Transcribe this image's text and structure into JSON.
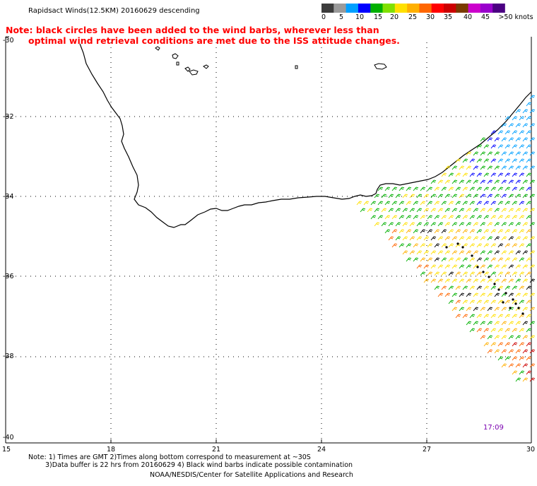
{
  "header": {
    "title": "Rapidsact Winds(12.5KM) 20160629 descending"
  },
  "note": {
    "line1": "Note: black circles have been added to the wind barbs, wherever less than",
    "line2": "optimal wind retrieval conditions are met due to the ISS attitude changes."
  },
  "colorbar": {
    "colors": [
      "#3c3c3c",
      "#9a9a9a",
      "#00a0ff",
      "#0000ff",
      "#00b000",
      "#80e000",
      "#ffe000",
      "#ffb000",
      "#ff6600",
      "#ff0000",
      "#cc0000",
      "#7a3a00",
      "#cc00cc",
      "#9900cc",
      "#4b0082"
    ],
    "labels": [
      "0",
      "5",
      "10",
      "15",
      "20",
      "25",
      "30",
      "35",
      "40",
      "45",
      ">50 knots"
    ]
  },
  "axes": {
    "lat_labels": [
      "-30",
      "-32",
      "-34",
      "-36",
      "-38",
      "-40"
    ],
    "lon_labels": [
      "15",
      "18",
      "21",
      "24",
      "27",
      "30"
    ]
  },
  "time_label": "17:09",
  "footer": {
    "line1": "Note: 1) Times are GMT 2)Times along bottom correspond to measurement at ~30S",
    "line2": "3)Data buffer is 22 hrs from 20160629 4) Black wind barbs indicate possible contamination",
    "line3": "NOAA/NESDIS/Center for Satellite Applications and Research"
  }
}
